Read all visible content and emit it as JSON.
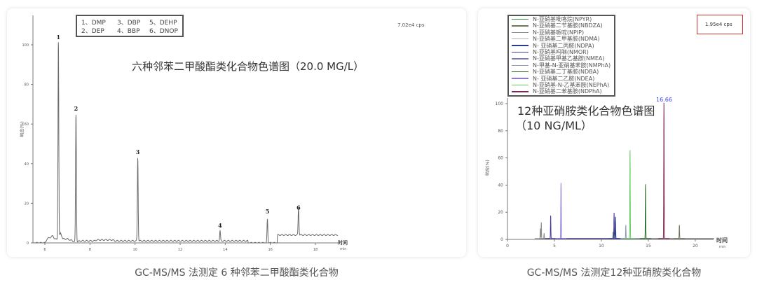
{
  "captions": [
    "GC-MS/MS 法测定 6 种邻苯二甲酸酯类化合物",
    "GC-MS/MS 法测定12种亚硝胺类化合物"
  ],
  "chart_data": [
    {
      "type": "line",
      "title": "六种邻苯二甲酸酯类化合物色谱图（20.0 MG/L）",
      "ylabel": "响应(%)",
      "xlabel": "时间",
      "xunit": "min",
      "annotation": "7.02e4 cps",
      "xlim": [
        5.5,
        19
      ],
      "ylim": [
        0,
        110
      ],
      "xticks": [
        6,
        8,
        10,
        12,
        14,
        16,
        18
      ],
      "yticks": [
        0,
        20,
        40,
        60,
        80,
        100
      ],
      "grid": false,
      "line_color": "#6a6a6a",
      "legend": [
        "1、DMP",
        "3、DBP",
        "5、DEHP",
        "2、DEP",
        "4、BBP",
        "6、DNOP"
      ],
      "baseline": [
        [
          5.5,
          0
        ],
        [
          6.0,
          0
        ],
        [
          6.1,
          2
        ],
        [
          6.35,
          3.5
        ],
        [
          6.45,
          2
        ],
        [
          6.6,
          1.5
        ],
        [
          6.7,
          5
        ],
        [
          6.8,
          2
        ],
        [
          7.0,
          2
        ],
        [
          7.35,
          0.5
        ],
        [
          7.6,
          1
        ],
        [
          8.2,
          1
        ],
        [
          8.3,
          1.5
        ],
        [
          9.0,
          1.5
        ],
        [
          9.1,
          1
        ],
        [
          15.0,
          1
        ],
        [
          15.02,
          0
        ],
        [
          16.3,
          0
        ],
        [
          16.32,
          4
        ],
        [
          19,
          4
        ]
      ],
      "peaks": [
        {
          "label": "1",
          "rt": 6.6,
          "height": 100
        },
        {
          "label": "2",
          "rt": 7.38,
          "height": 64
        },
        {
          "label": "3",
          "rt": 10.12,
          "height": 42
        },
        {
          "label": "4",
          "rt": 13.77,
          "height": 5
        },
        {
          "label": "5",
          "rt": 15.87,
          "height": 12
        },
        {
          "label": "6",
          "rt": 17.25,
          "height": 14
        }
      ]
    },
    {
      "type": "line",
      "title": "12种亚硝胺类化合物色谱图",
      "title2": "（10 NG/ML）",
      "ylabel": "响应(%)",
      "xlabel": "时间",
      "xunit": "min",
      "annotation": "1.95e4 cps",
      "apex_label": "16.66",
      "xlim": [
        0,
        22
      ],
      "ylim": [
        0,
        100
      ],
      "xticks": [
        0,
        5,
        10,
        15,
        20
      ],
      "yticks": [
        0,
        20,
        40,
        60,
        80,
        100
      ],
      "grid": false,
      "series": [
        {
          "name": "N-亚硝基吡咯烷(NPYR)",
          "color": "#3f9f4f",
          "peaks": [
            [
              11.25,
              5
            ]
          ]
        },
        {
          "name": "N-亚硝基二苄基胺(NBDZA)",
          "color": "#6b7a55",
          "peaks": [
            [
              18.3,
              10
            ]
          ]
        },
        {
          "name": "N-亚硝基哌啶(NPIP)",
          "color": "#8a8a8a",
          "peaks": [
            [
              3.6,
              12
            ],
            [
              3.5,
              7
            ],
            [
              3.9,
              4
            ]
          ]
        },
        {
          "name": "N-亚硝基二甲基胺(NDMA)",
          "color": "#b0b0b0",
          "peaks": []
        },
        {
          "name": "N- 亚硝基二丙胺(NDPA)",
          "color": "#2b3a8f",
          "peaks": [
            [
              11.5,
              16
            ]
          ]
        },
        {
          "name": "N-亚硝基吗啉(NMOR)",
          "color": "#4a3aa0",
          "peaks": [
            [
              4.6,
              17
            ],
            [
              11.35,
              19
            ]
          ]
        },
        {
          "name": "N-亚硝基甲基乙基胺(NMEA)",
          "color": "#7a78c0",
          "peaks": []
        },
        {
          "name": "N-甲基-N-亚硝基苯胺(NMPhA)",
          "color": "#8c9ac0",
          "peaks": [
            [
              12.6,
              10
            ]
          ]
        },
        {
          "name": "N-亚硝基二丁基胺(NDBA)",
          "color": "#2f6e2f",
          "peaks": [
            [
              14.7,
              40
            ]
          ]
        },
        {
          "name": "N- 亚硝基二乙胺(NDEA)",
          "color": "#8a7ae6",
          "peaks": [
            [
              5.7,
              41
            ]
          ]
        },
        {
          "name": "N-亚硝基-N-乙基苯胺(NEPhA)",
          "color": "#66cc66",
          "peaks": [
            [
              13.05,
              65
            ]
          ]
        },
        {
          "name": "N-亚硝基二苯基胺(NDPhA)",
          "color": "#7a2a5a",
          "peaks": [
            [
              16.66,
              100
            ]
          ]
        }
      ]
    }
  ],
  "colors": {
    "apex_label": "#3b3bff",
    "annotation_box": "#d9302f"
  }
}
